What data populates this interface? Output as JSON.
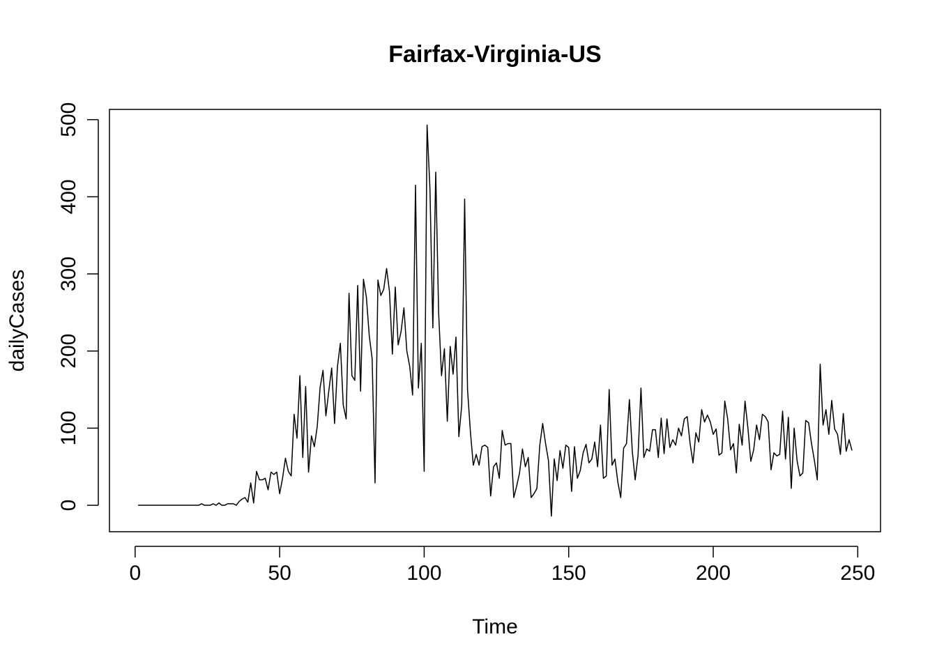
{
  "chart_data": {
    "type": "line",
    "title": "Fairfax-Virginia-US",
    "x_label": "Time",
    "y_label": "dailyCases",
    "x": [
      1,
      2,
      3,
      4,
      5,
      6,
      7,
      8,
      9,
      10,
      11,
      12,
      13,
      14,
      15,
      16,
      17,
      18,
      19,
      20,
      21,
      22,
      23,
      24,
      25,
      26,
      27,
      28,
      29,
      30,
      31,
      32,
      33,
      34,
      35,
      36,
      37,
      38,
      39,
      40,
      41,
      42,
      43,
      44,
      45,
      46,
      47,
      48,
      49,
      50,
      51,
      52,
      53,
      54,
      55,
      56,
      57,
      58,
      59,
      60,
      61,
      62,
      63,
      64,
      65,
      66,
      67,
      68,
      69,
      70,
      71,
      72,
      73,
      74,
      75,
      76,
      77,
      78,
      79,
      80,
      81,
      82,
      83,
      84,
      85,
      86,
      87,
      88,
      89,
      90,
      91,
      92,
      93,
      94,
      95,
      96,
      97,
      98,
      99,
      100,
      101,
      102,
      103,
      104,
      105,
      106,
      107,
      108,
      109,
      110,
      111,
      112,
      113,
      114,
      115,
      116,
      117,
      118,
      119,
      120,
      121,
      122,
      123,
      124,
      125,
      126,
      127,
      128,
      129,
      130,
      131,
      132,
      133,
      134,
      135,
      136,
      137,
      138,
      139,
      140,
      141,
      142,
      143,
      144,
      145,
      146,
      147,
      148,
      149,
      150,
      151,
      152,
      153,
      154,
      155,
      156,
      157,
      158,
      159,
      160,
      161,
      162,
      163,
      164,
      165,
      166,
      167,
      168,
      169,
      170,
      171,
      172,
      173,
      174,
      175,
      176,
      177,
      178,
      179,
      180,
      181,
      182,
      183,
      184,
      185,
      186,
      187,
      188,
      189,
      190,
      191,
      192,
      193,
      194,
      195,
      196,
      197,
      198,
      199,
      200,
      201,
      202,
      203,
      204,
      205,
      206,
      207,
      208,
      209,
      210,
      211,
      212,
      213,
      214,
      215,
      216,
      217,
      218,
      219,
      220,
      221,
      222,
      223,
      224,
      225,
      226,
      227,
      228,
      229,
      230,
      231,
      232,
      233,
      234,
      235,
      236,
      237,
      238,
      239,
      240,
      241,
      242,
      243,
      244,
      245,
      246,
      247,
      248
    ],
    "series": [
      {
        "name": "dailyCases",
        "color": "#000000",
        "values": [
          0,
          0,
          0,
          0,
          0,
          0,
          0,
          0,
          0,
          0,
          0,
          0,
          0,
          0,
          0,
          0,
          0,
          0,
          0,
          0,
          0,
          0,
          2,
          0,
          0,
          0,
          2,
          0,
          3,
          0,
          0,
          2,
          2,
          2,
          0,
          5,
          8,
          10,
          4,
          29,
          3,
          44,
          33,
          33,
          35,
          20,
          43,
          40,
          43,
          15,
          35,
          61,
          44,
          38,
          118,
          87,
          168,
          62,
          154,
          43,
          90,
          76,
          102,
          153,
          175,
          116,
          148,
          178,
          106,
          180,
          210,
          130,
          112,
          275,
          168,
          162,
          285,
          148,
          293,
          270,
          220,
          190,
          29,
          292,
          272,
          280,
          307,
          277,
          196,
          283,
          208,
          225,
          256,
          200,
          180,
          143,
          415,
          152,
          210,
          44,
          493,
          410,
          230,
          432,
          250,
          168,
          203,
          109,
          206,
          170,
          218,
          89,
          130,
          397,
          150,
          95,
          52,
          66,
          52,
          76,
          78,
          75,
          12,
          50,
          55,
          35,
          97,
          78,
          80,
          80,
          10,
          25,
          42,
          73,
          50,
          62,
          10,
          15,
          22,
          78,
          106,
          80,
          58,
          -14,
          60,
          32,
          71,
          48,
          78,
          75,
          18,
          76,
          35,
          45,
          68,
          79,
          55,
          60,
          82,
          50,
          104,
          35,
          38,
          150,
          52,
          60,
          30,
          10,
          74,
          80,
          137,
          70,
          33,
          65,
          152,
          62,
          73,
          70,
          98,
          98,
          62,
          113,
          67,
          112,
          75,
          85,
          78,
          100,
          90,
          112,
          115,
          80,
          55,
          94,
          82,
          124,
          108,
          117,
          108,
          92,
          99,
          65,
          68,
          135,
          112,
          72,
          80,
          42,
          105,
          78,
          135,
          100,
          57,
          72,
          104,
          85,
          118,
          115,
          108,
          46,
          68,
          64,
          66,
          122,
          60,
          114,
          22,
          100,
          58,
          38,
          42,
          110,
          107,
          80,
          58,
          33,
          183,
          104,
          124,
          92,
          136,
          99,
          92,
          66,
          119,
          70,
          85,
          71
        ]
      }
    ],
    "xlim": [
      -8.88,
      257.88
    ],
    "ylim": [
      -34.28,
      513.28
    ],
    "xticks": [
      0,
      50,
      100,
      150,
      200,
      250
    ],
    "yticks": [
      0,
      100,
      200,
      300,
      400,
      500
    ]
  }
}
